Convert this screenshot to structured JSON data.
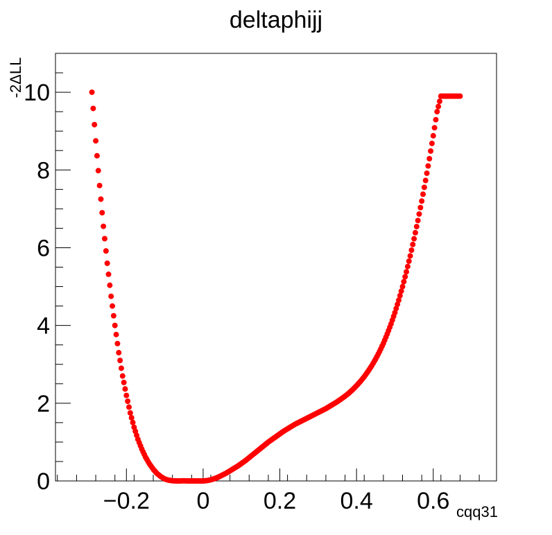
{
  "chart_data": {
    "type": "scatter",
    "title": "deltaphijj",
    "xlabel": "cqq31",
    "ylabel": "-2ΔLL",
    "xlim": [
      -0.385,
      0.765
    ],
    "ylim": [
      0,
      11
    ],
    "xticks": [
      -0.2,
      0,
      0.2,
      0.4,
      0.6
    ],
    "xtick_labels": [
      "−0.2",
      "0",
      "0.2",
      "0.4",
      "0.6"
    ],
    "yticks": [
      0,
      2,
      4,
      6,
      8,
      10
    ],
    "ytick_labels": [
      "0",
      "2",
      "4",
      "6",
      "8",
      "10"
    ],
    "grid": false,
    "marker_color": "#ff0000",
    "series": [
      {
        "x": [
          -0.29,
          -0.28,
          -0.27,
          -0.26,
          -0.25,
          -0.24,
          -0.23,
          -0.22,
          -0.21,
          -0.2,
          -0.19,
          -0.18,
          -0.17,
          -0.16,
          -0.15,
          -0.14,
          -0.13,
          -0.12,
          -0.11,
          -0.1,
          -0.09,
          -0.08,
          -0.07,
          -0.06,
          -0.05,
          -0.04,
          -0.03,
          -0.02,
          -0.01,
          0.0,
          0.01,
          0.02,
          0.03,
          0.04,
          0.05,
          0.06,
          0.07,
          0.08,
          0.09,
          0.1,
          0.11,
          0.12,
          0.13,
          0.14,
          0.15,
          0.16,
          0.17,
          0.18,
          0.19,
          0.2,
          0.21,
          0.22,
          0.23,
          0.24,
          0.25,
          0.26,
          0.27,
          0.28,
          0.29,
          0.3,
          0.31,
          0.32,
          0.33,
          0.34,
          0.35,
          0.36,
          0.37,
          0.38,
          0.39,
          0.4,
          0.41,
          0.42,
          0.43,
          0.44,
          0.45,
          0.46,
          0.47,
          0.48,
          0.49,
          0.5,
          0.51,
          0.52,
          0.53,
          0.54,
          0.55,
          0.56,
          0.57,
          0.58,
          0.59,
          0.6,
          0.61,
          0.62,
          0.63,
          0.64,
          0.65,
          0.66,
          0.67
        ],
        "y": [
          10.0,
          8.75,
          7.6,
          6.55,
          5.6,
          4.75,
          4.0,
          3.3,
          2.7,
          2.2,
          1.75,
          1.38,
          1.07,
          0.82,
          0.61,
          0.44,
          0.3,
          0.19,
          0.11,
          0.05,
          0.02,
          0.005,
          0.0,
          0.0,
          0.005,
          0.0,
          0.0,
          0.0,
          0.0,
          0.0,
          0.01,
          0.03,
          0.06,
          0.1,
          0.15,
          0.2,
          0.26,
          0.32,
          0.38,
          0.45,
          0.52,
          0.6,
          0.68,
          0.76,
          0.84,
          0.92,
          1.0,
          1.07,
          1.14,
          1.21,
          1.28,
          1.34,
          1.4,
          1.46,
          1.51,
          1.56,
          1.61,
          1.66,
          1.71,
          1.76,
          1.81,
          1.86,
          1.92,
          1.98,
          2.04,
          2.11,
          2.18,
          2.26,
          2.35,
          2.45,
          2.56,
          2.68,
          2.82,
          2.97,
          3.14,
          3.33,
          3.54,
          3.78,
          4.04,
          4.33,
          4.65,
          5.0,
          5.38,
          5.79,
          6.23,
          6.7,
          7.2,
          7.73,
          8.29,
          8.88,
          9.5,
          9.9,
          9.9,
          9.9,
          9.9,
          9.9,
          9.9
        ]
      }
    ]
  }
}
